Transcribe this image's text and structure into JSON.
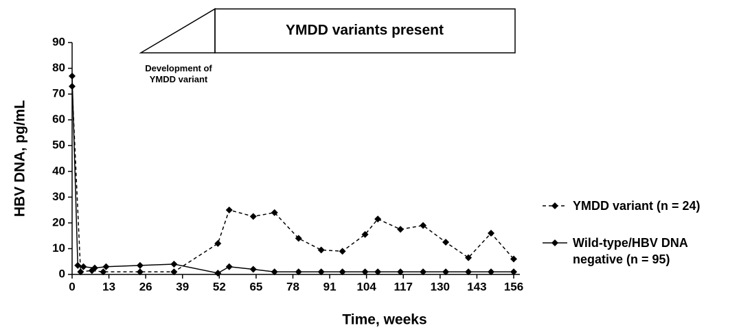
{
  "chart_data": {
    "type": "line",
    "xlabel": "Time, weeks",
    "ylabel": "HBV DNA, pg/mL",
    "xlim": [
      0,
      156
    ],
    "xticks": [
      0,
      13,
      26,
      39,
      52,
      65,
      78,
      91,
      104,
      117,
      130,
      143,
      156
    ],
    "ylim": [
      0,
      90
    ],
    "yticks": [
      0,
      10,
      20,
      30,
      40,
      50,
      60,
      70,
      80,
      90
    ],
    "annotations": [
      "Development of YMDD variant",
      "YMDD variants present"
    ],
    "series": [
      {
        "name": "YMDD variant (n = 24)",
        "color": "#000000",
        "dashed": true,
        "x": [
          0,
          3,
          7,
          11,
          24,
          36,
          51.5,
          55.5,
          64,
          71.5,
          80,
          88,
          95.5,
          103.5,
          108,
          116,
          124,
          132,
          140,
          148,
          156
        ],
        "values": [
          73,
          1,
          1.5,
          1,
          1,
          1,
          12,
          25,
          22.5,
          24,
          14,
          9.5,
          9,
          15.5,
          21.5,
          17.5,
          19,
          12.5,
          6.5,
          16,
          6
        ]
      },
      {
        "name": "Wild-type/HBV DNA negative (n = 95)",
        "color": "#000000",
        "dashed": false,
        "x": [
          0,
          2,
          4,
          8,
          12,
          24,
          36,
          51.5,
          55.5,
          64,
          71.5,
          80,
          88,
          95.5,
          103.5,
          108,
          116,
          124,
          132,
          140,
          148,
          156
        ],
        "values": [
          77,
          3.5,
          3,
          2.5,
          3,
          3.5,
          4,
          0.5,
          3,
          2,
          1,
          1,
          1,
          1,
          1,
          1,
          1,
          1,
          1,
          1,
          1,
          1
        ]
      }
    ]
  }
}
